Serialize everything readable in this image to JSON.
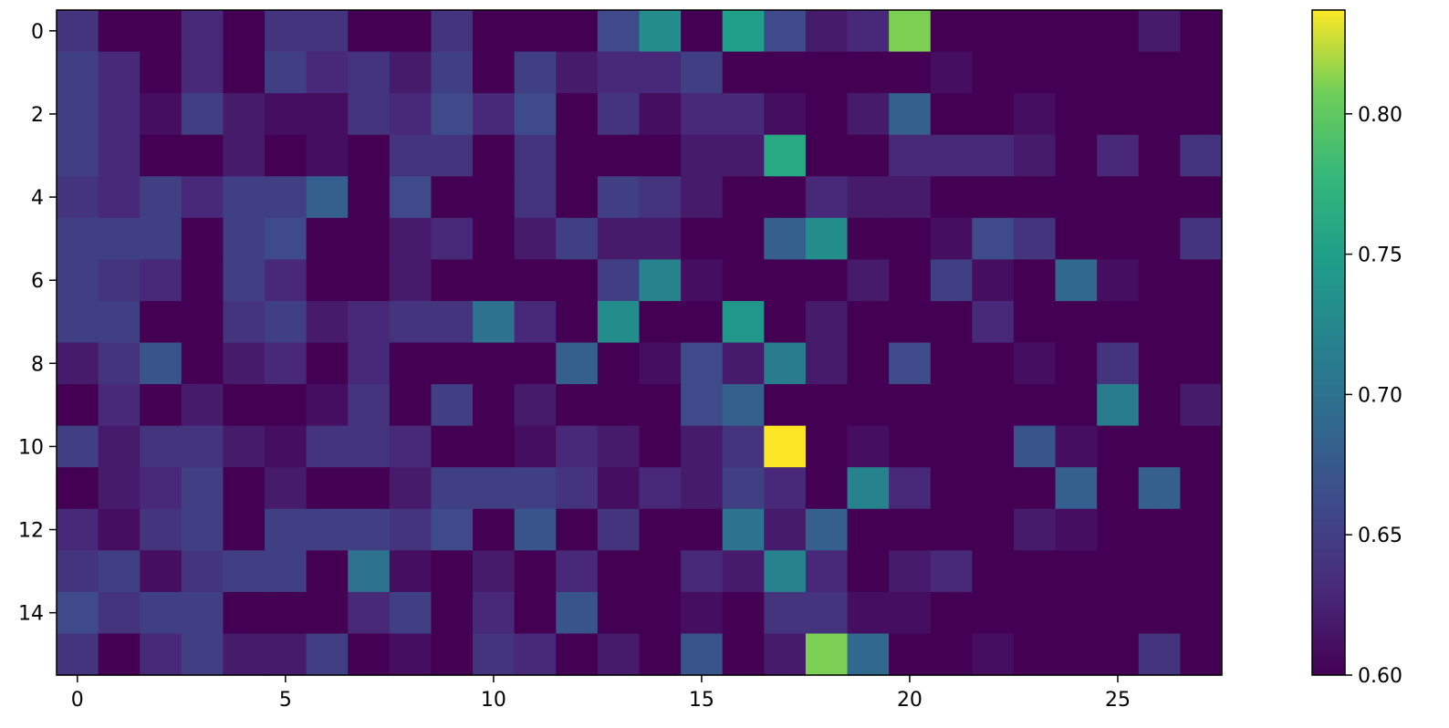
{
  "chart_data": {
    "type": "heatmap",
    "title": "",
    "xlabel": "",
    "ylabel": "",
    "rows": 16,
    "cols": 28,
    "xticks": [
      0,
      5,
      10,
      15,
      20,
      25
    ],
    "yticks": [
      0,
      2,
      4,
      6,
      8,
      10,
      12,
      14
    ],
    "colorbar": {
      "vmin": 0.6,
      "vmax": 0.837,
      "ticks": [
        0.6,
        0.65,
        0.7,
        0.75,
        0.8
      ],
      "tick_labels": [
        "0.60",
        "0.65",
        "0.70",
        "0.75",
        "0.80"
      ],
      "colormap": "viridis"
    },
    "values": [
      [
        0.64,
        0.6,
        0.6,
        0.63,
        0.6,
        0.64,
        0.64,
        0.6,
        0.6,
        0.64,
        0.6,
        0.6,
        0.6,
        0.66,
        0.73,
        0.6,
        0.75,
        0.66,
        0.62,
        0.63,
        0.81,
        0.6,
        0.6,
        0.6,
        0.6,
        0.6,
        0.62,
        0.6
      ],
      [
        0.65,
        0.63,
        0.6,
        0.63,
        0.6,
        0.65,
        0.63,
        0.64,
        0.62,
        0.65,
        0.6,
        0.65,
        0.62,
        0.63,
        0.63,
        0.65,
        0.6,
        0.6,
        0.6,
        0.6,
        0.6,
        0.61,
        0.6,
        0.6,
        0.6,
        0.6,
        0.6,
        0.6
      ],
      [
        0.65,
        0.63,
        0.61,
        0.65,
        0.62,
        0.61,
        0.61,
        0.64,
        0.63,
        0.66,
        0.63,
        0.66,
        0.6,
        0.64,
        0.61,
        0.63,
        0.63,
        0.61,
        0.6,
        0.62,
        0.68,
        0.6,
        0.6,
        0.61,
        0.6,
        0.6,
        0.6,
        0.6
      ],
      [
        0.65,
        0.63,
        0.6,
        0.6,
        0.62,
        0.6,
        0.61,
        0.6,
        0.64,
        0.64,
        0.6,
        0.64,
        0.6,
        0.6,
        0.6,
        0.62,
        0.62,
        0.76,
        0.6,
        0.6,
        0.63,
        0.63,
        0.63,
        0.62,
        0.6,
        0.63,
        0.6,
        0.64
      ],
      [
        0.64,
        0.63,
        0.65,
        0.63,
        0.65,
        0.65,
        0.68,
        0.6,
        0.66,
        0.6,
        0.6,
        0.64,
        0.6,
        0.65,
        0.64,
        0.62,
        0.6,
        0.6,
        0.63,
        0.62,
        0.62,
        0.6,
        0.6,
        0.6,
        0.6,
        0.6,
        0.6,
        0.6
      ],
      [
        0.65,
        0.65,
        0.65,
        0.6,
        0.65,
        0.66,
        0.6,
        0.6,
        0.62,
        0.63,
        0.6,
        0.62,
        0.65,
        0.62,
        0.62,
        0.6,
        0.6,
        0.68,
        0.73,
        0.6,
        0.6,
        0.61,
        0.66,
        0.64,
        0.6,
        0.6,
        0.6,
        0.64
      ],
      [
        0.65,
        0.64,
        0.63,
        0.6,
        0.65,
        0.63,
        0.6,
        0.6,
        0.62,
        0.6,
        0.6,
        0.6,
        0.6,
        0.65,
        0.72,
        0.61,
        0.6,
        0.6,
        0.6,
        0.62,
        0.6,
        0.65,
        0.61,
        0.6,
        0.69,
        0.61,
        0.6,
        0.6
      ],
      [
        0.65,
        0.65,
        0.6,
        0.6,
        0.64,
        0.65,
        0.62,
        0.63,
        0.64,
        0.64,
        0.7,
        0.63,
        0.6,
        0.73,
        0.6,
        0.6,
        0.74,
        0.6,
        0.62,
        0.6,
        0.6,
        0.6,
        0.63,
        0.6,
        0.6,
        0.6,
        0.6,
        0.6
      ],
      [
        0.62,
        0.64,
        0.67,
        0.6,
        0.62,
        0.63,
        0.6,
        0.63,
        0.6,
        0.6,
        0.6,
        0.6,
        0.68,
        0.6,
        0.61,
        0.66,
        0.62,
        0.71,
        0.62,
        0.6,
        0.66,
        0.6,
        0.6,
        0.61,
        0.6,
        0.64,
        0.6,
        0.6
      ],
      [
        0.6,
        0.63,
        0.6,
        0.62,
        0.6,
        0.6,
        0.61,
        0.64,
        0.6,
        0.65,
        0.6,
        0.62,
        0.6,
        0.6,
        0.6,
        0.66,
        0.68,
        0.6,
        0.6,
        0.6,
        0.6,
        0.6,
        0.6,
        0.6,
        0.6,
        0.71,
        0.6,
        0.62
      ],
      [
        0.65,
        0.62,
        0.64,
        0.64,
        0.62,
        0.61,
        0.64,
        0.64,
        0.63,
        0.6,
        0.6,
        0.61,
        0.63,
        0.62,
        0.6,
        0.62,
        0.64,
        0.837,
        0.6,
        0.61,
        0.6,
        0.6,
        0.6,
        0.67,
        0.61,
        0.6,
        0.6,
        0.6
      ],
      [
        0.6,
        0.62,
        0.63,
        0.65,
        0.6,
        0.62,
        0.6,
        0.6,
        0.62,
        0.65,
        0.65,
        0.65,
        0.64,
        0.61,
        0.63,
        0.62,
        0.65,
        0.63,
        0.6,
        0.72,
        0.63,
        0.6,
        0.6,
        0.6,
        0.68,
        0.6,
        0.68,
        0.6
      ],
      [
        0.63,
        0.61,
        0.64,
        0.65,
        0.6,
        0.65,
        0.65,
        0.65,
        0.64,
        0.66,
        0.6,
        0.67,
        0.6,
        0.64,
        0.6,
        0.6,
        0.7,
        0.62,
        0.68,
        0.6,
        0.6,
        0.6,
        0.6,
        0.62,
        0.61,
        0.6,
        0.6,
        0.6
      ],
      [
        0.64,
        0.65,
        0.61,
        0.64,
        0.65,
        0.65,
        0.6,
        0.7,
        0.61,
        0.6,
        0.62,
        0.6,
        0.63,
        0.6,
        0.6,
        0.63,
        0.62,
        0.72,
        0.63,
        0.6,
        0.62,
        0.63,
        0.6,
        0.6,
        0.6,
        0.6,
        0.6,
        0.6
      ],
      [
        0.66,
        0.64,
        0.65,
        0.65,
        0.6,
        0.6,
        0.6,
        0.63,
        0.65,
        0.6,
        0.63,
        0.6,
        0.67,
        0.6,
        0.6,
        0.61,
        0.6,
        0.64,
        0.64,
        0.61,
        0.61,
        0.6,
        0.6,
        0.6,
        0.6,
        0.6,
        0.6,
        0.6
      ],
      [
        0.64,
        0.6,
        0.63,
        0.65,
        0.62,
        0.62,
        0.65,
        0.6,
        0.61,
        0.6,
        0.64,
        0.63,
        0.6,
        0.62,
        0.6,
        0.67,
        0.6,
        0.62,
        0.81,
        0.69,
        0.6,
        0.6,
        0.61,
        0.6,
        0.6,
        0.6,
        0.64,
        0.6
      ]
    ]
  }
}
